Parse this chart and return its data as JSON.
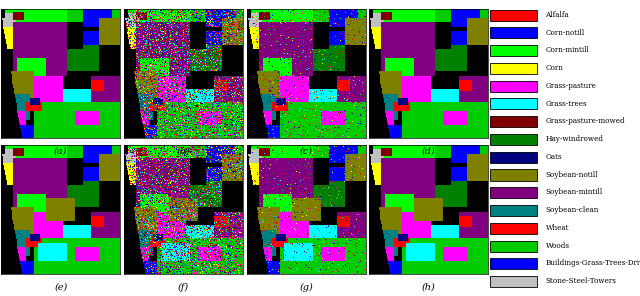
{
  "legend_items": [
    {
      "label": "Alfalfa",
      "color": "#ff0000"
    },
    {
      "label": "Corn-notill",
      "color": "#0000ff"
    },
    {
      "label": "Corn-mintill",
      "color": "#00ff00"
    },
    {
      "label": "Corn",
      "color": "#ffff00"
    },
    {
      "label": "Grass-pasture",
      "color": "#ff00ff"
    },
    {
      "label": "Grass-trees",
      "color": "#00ffff"
    },
    {
      "label": "Grass-pasture-mowed",
      "color": "#800000"
    },
    {
      "label": "Hay-windrowed",
      "color": "#008000"
    },
    {
      "label": "Oats",
      "color": "#000080"
    },
    {
      "label": "Soybean-notill",
      "color": "#808000"
    },
    {
      "label": "Soybean-mintill",
      "color": "#800080"
    },
    {
      "label": "Soybean-clean",
      "color": "#008080"
    },
    {
      "label": "Wheat",
      "color": "#ff0000"
    },
    {
      "label": "Woods",
      "color": "#00cc00"
    },
    {
      "label": "Buildings-Grass-Trees-Drives",
      "color": "#0000ff"
    },
    {
      "label": "Stone-Steel-Towers",
      "color": "#c0c0c0"
    }
  ],
  "subplot_labels": [
    "(a)",
    "(b)",
    "(c)",
    "(d)",
    "(e)",
    "(f)",
    "(g)",
    "(h)"
  ],
  "figsize": [
    6.4,
    2.96
  ],
  "dpi": 100
}
